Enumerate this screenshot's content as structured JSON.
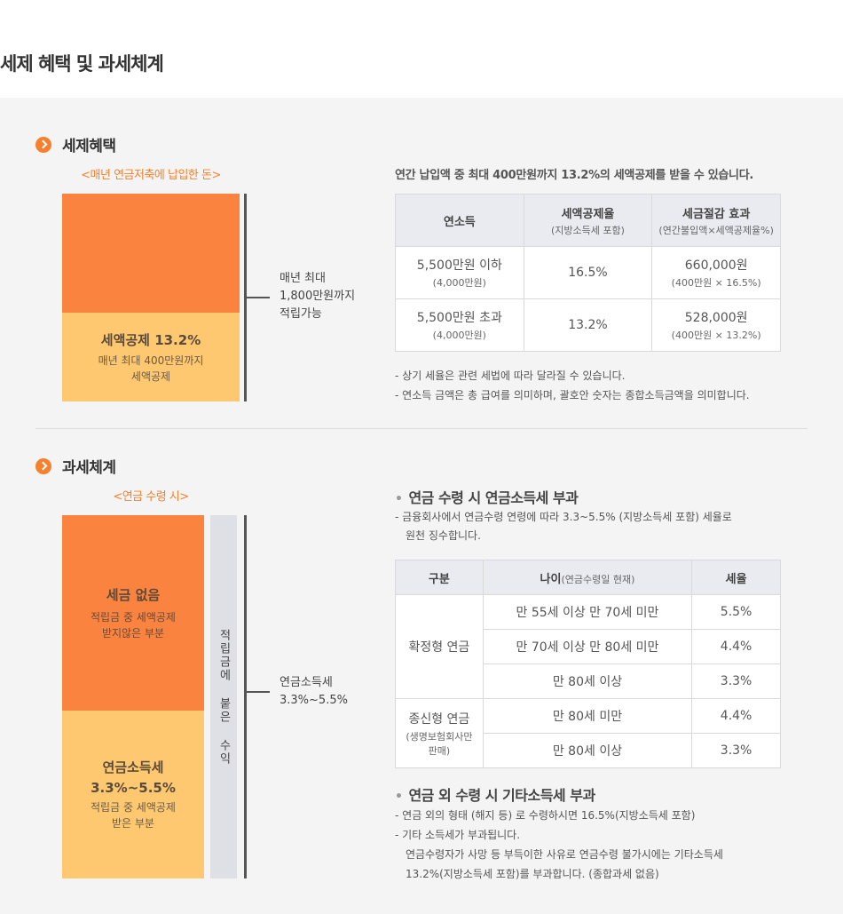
{
  "page_title": "세제 혜택 및 과세체계",
  "benefit": {
    "heading": "세제혜택",
    "caption": "<매년 연금저축에 납입한 돈>",
    "yellow_title": "세액공제 13.2%",
    "yellow_line1": "매년 최대 400만원까지",
    "yellow_line2": "세액공제",
    "side_line1": "매년 최대",
    "side_line2": "1,800만원까지",
    "side_line3": "적립가능",
    "intro": "연간 납입액 중 최대 400만원까지 13.2%의 세액공제를 받을 수 있습니다.",
    "table": {
      "headers": [
        {
          "label": "연소득",
          "sub": ""
        },
        {
          "label": "세액공제율",
          "sub": "(지방소득세 포함)"
        },
        {
          "label": "세금절감 효과",
          "sub": "(연간불입액×세액공제율%)"
        }
      ],
      "rows": [
        {
          "income": "5,500만원 이하",
          "income_sub": "(4,000만원)",
          "rate": "16.5%",
          "effect": "660,000원",
          "effect_sub": "(400만원 × 16.5%)"
        },
        {
          "income": "5,500만원 초과",
          "income_sub": "(4,000만원)",
          "rate": "13.2%",
          "effect": "528,000원",
          "effect_sub": "(400만원 × 13.2%)"
        }
      ]
    },
    "notes": [
      "상기 세율은 관련 세법에 따라 달라질 수 있습니다.",
      "연소득 금액은 총 급여를 의미하며, 괄호안 숫자는 종합소득금액을 의미합니다."
    ]
  },
  "tax": {
    "heading": "과세체계",
    "caption": "<연금 수령 시>",
    "orange_title": "세금 없음",
    "orange_line1": "적립금 중 세액공제",
    "orange_line2": "받지않은 부분",
    "yellow_title": "연금소득세",
    "yellow_title2": "3.3%~5.5%",
    "yellow_line1": "적립금 중 세액공제",
    "yellow_line2": "받은 부분",
    "gray_col": "적립금에 붙은 수익",
    "side_line1": "연금소득세",
    "side_line2": "3.3%~5.5%",
    "sub1_title": "연금 수령 시 연금소득세 부과",
    "sub1_note_line1": "금융회사에서 연금수령 연령에 따라 3.3~5.5% (지방소득세 포함) 세율로",
    "sub1_note_line2": "원천 징수합니다.",
    "table": {
      "h_type": "구분",
      "h_age": "나이",
      "h_age_sub": "(연금수령일 현재)",
      "h_rate": "세율",
      "group1": "확정형 연금",
      "group2": "종신형 연금",
      "group2_sub": "(생명보험회사만 판매)",
      "rows": [
        {
          "age": "만 55세 이상 만 70세 미만",
          "rate": "5.5%"
        },
        {
          "age": "만 70세 이상 만 80세 미만",
          "rate": "4.4%"
        },
        {
          "age": "만 80세 이상",
          "rate": "3.3%"
        },
        {
          "age": "만 80세 미만",
          "rate": "4.4%"
        },
        {
          "age": "만 80세 이상",
          "rate": "3.3%"
        }
      ]
    },
    "sub2_title": "연금 외 수령 시 기타소득세 부과",
    "sub2_note1": "연금 외의 형태 (해지 등) 로 수령하시면 16.5%(지방소득세 포함)",
    "sub2_note2": "기타 소득세가 부과됩니다.",
    "sub2_note3": "연금수령자가 사망 등 부득이한 사유로 연금수령 불가시에는 기타소득세",
    "sub2_note4": "13.2%(지방소득세 포함)를 부과합니다. (종합과세 없음)"
  }
}
